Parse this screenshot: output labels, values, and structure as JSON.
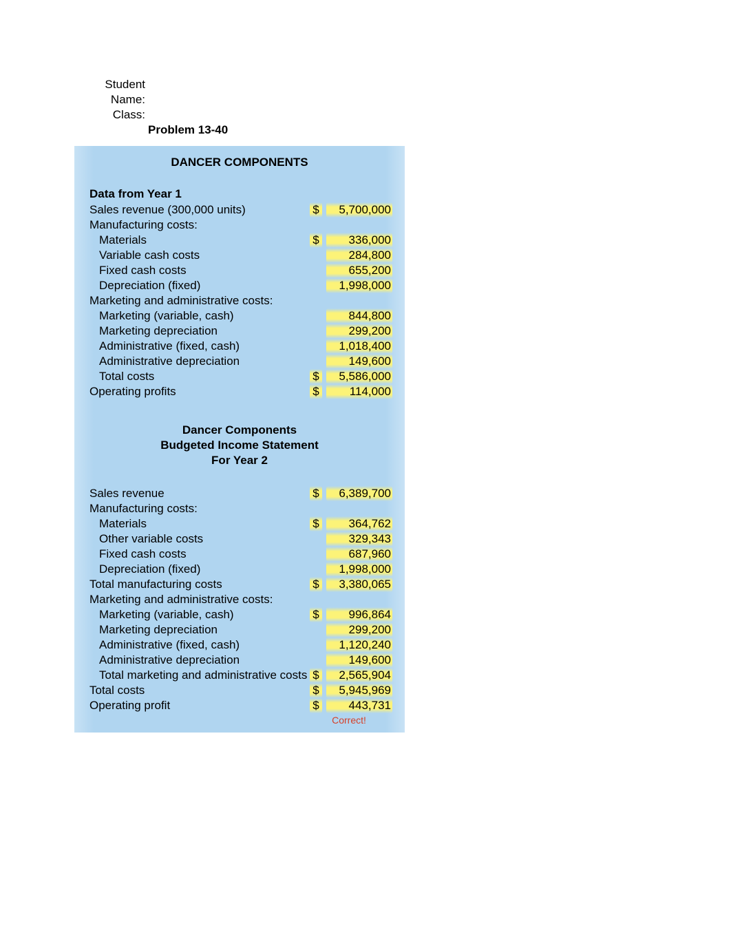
{
  "header": {
    "student_label": "Student Name:",
    "class_label": "Class:",
    "problem": "Problem 13-40"
  },
  "panel": {
    "title": "DANCER COMPONENTS",
    "section1": {
      "heading": "Data from Year 1",
      "rows": [
        {
          "label": "Sales revenue (300,000 units)",
          "indent": 0,
          "currency": "$",
          "amount": "5,700,000"
        },
        {
          "label": "Manufacturing costs:",
          "indent": 0
        },
        {
          "label": "Materials",
          "indent": 1,
          "currency": "$",
          "amount": "336,000"
        },
        {
          "label": "Variable cash costs",
          "indent": 1,
          "amount": "284,800"
        },
        {
          "label": "Fixed cash costs",
          "indent": 1,
          "amount": "655,200"
        },
        {
          "label": "Depreciation (fixed)",
          "indent": 1,
          "amount": "1,998,000"
        },
        {
          "label": "Marketing and administrative costs:",
          "indent": 0
        },
        {
          "label": "Marketing (variable, cash)",
          "indent": 1,
          "amount": "844,800"
        },
        {
          "label": "Marketing depreciation",
          "indent": 1,
          "amount": "299,200"
        },
        {
          "label": "Administrative (fixed, cash)",
          "indent": 1,
          "amount": "1,018,400"
        },
        {
          "label": "Administrative depreciation",
          "indent": 1,
          "amount": "149,600"
        },
        {
          "label": "Total costs",
          "indent": 1,
          "currency": "$",
          "amount": "5,586,000"
        },
        {
          "label": "Operating profits",
          "indent": 0,
          "currency": "$",
          "amount": "114,000"
        }
      ]
    },
    "section2": {
      "title_l1": "Dancer Components",
      "title_l2": "Budgeted Income Statement",
      "title_l3": "For Year 2",
      "rows": [
        {
          "label": "Sales revenue",
          "indent": 0,
          "currency": "$",
          "amount": "6,389,700"
        },
        {
          "label": "Manufacturing costs:",
          "indent": 0
        },
        {
          "label": "Materials",
          "indent": 1,
          "currency": "$",
          "amount": "364,762"
        },
        {
          "label": "Other variable costs",
          "indent": 1,
          "amount": "329,343"
        },
        {
          "label": "Fixed cash costs",
          "indent": 1,
          "amount": "687,960"
        },
        {
          "label": "Depreciation (fixed)",
          "indent": 1,
          "amount": "1,998,000"
        },
        {
          "label": "Total manufacturing costs",
          "indent": 0,
          "currency": "$",
          "amount": "3,380,065"
        },
        {
          "label": "Marketing and administrative costs:",
          "indent": 0
        },
        {
          "label": "Marketing (variable, cash)",
          "indent": 1,
          "currency": "$",
          "amount": "996,864"
        },
        {
          "label": "Marketing depreciation",
          "indent": 1,
          "amount": "299,200"
        },
        {
          "label": "Administrative (fixed, cash)",
          "indent": 1,
          "amount": "1,120,240"
        },
        {
          "label": "Administrative depreciation",
          "indent": 1,
          "amount": "149,600"
        },
        {
          "label": "Total marketing and administrative costs",
          "indent": 1,
          "currency": "$",
          "amount": "2,565,904"
        },
        {
          "label": "Total costs",
          "indent": 0,
          "currency": "$",
          "amount": "5,945,969"
        },
        {
          "label": "Operating profit",
          "indent": 0,
          "currency": "$",
          "amount": "443,731"
        }
      ],
      "correct": "Correct!"
    }
  },
  "style": {
    "highlight_bg": "#fcf378",
    "panel_bg": "#b0d5f0",
    "correct_color": "#d64028"
  }
}
